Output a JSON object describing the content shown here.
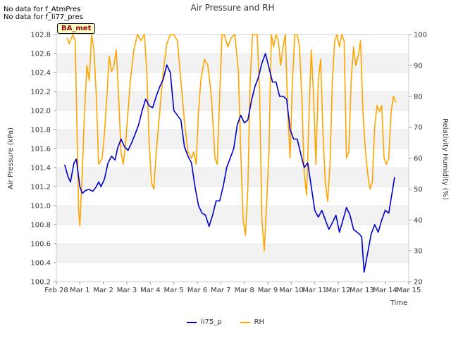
{
  "notes": [
    "No data for f_AtmPres",
    "No data for f_li77_pres"
  ],
  "badge": "BA_met",
  "chart_data": {
    "type": "line",
    "title": "Air Pressure and RH",
    "xlabel": "Time",
    "ylabel_left": "Air Pressure (kPa)",
    "ylabel_right": "Relativity Humidity (%)",
    "x_ticks": [
      "Feb 28",
      "Mar 1",
      "Mar 2",
      "Mar 3",
      "Mar 4",
      "Mar 5",
      "Mar 6",
      "Mar 7",
      "Mar 8",
      "Mar 9",
      "Mar 10",
      "Mar 11",
      "Mar 12",
      "Mar 13",
      "Mar 14",
      "Mar 15"
    ],
    "xlim_days": [
      0,
      15
    ],
    "ylim_left": [
      100.2,
      102.8
    ],
    "ylim_right": [
      20,
      100
    ],
    "y_ticks_left": [
      "100.2",
      "100.4",
      "100.6",
      "100.8",
      "101.0",
      "101.2",
      "101.4",
      "101.6",
      "101.8",
      "102.0",
      "102.2",
      "102.4",
      "102.6",
      "102.8"
    ],
    "y_ticks_right": [
      "20",
      "30",
      "40",
      "50",
      "60",
      "70",
      "80",
      "90",
      "100"
    ],
    "grid": "horizontal bands",
    "legend": "bottom-center",
    "series": [
      {
        "name": "li75_p",
        "axis": "left",
        "color": "#0000cc",
        "x": [
          0.35,
          0.5,
          0.6,
          0.75,
          0.85,
          1.0,
          1.1,
          1.25,
          1.4,
          1.55,
          1.7,
          1.8,
          1.9,
          2.05,
          2.2,
          2.35,
          2.5,
          2.6,
          2.75,
          2.9,
          3.05,
          3.2,
          3.35,
          3.5,
          3.65,
          3.8,
          3.95,
          4.1,
          4.25,
          4.4,
          4.55,
          4.7,
          4.85,
          5.0,
          5.15,
          5.3,
          5.45,
          5.6,
          5.75,
          5.9,
          6.05,
          6.2,
          6.35,
          6.5,
          6.65,
          6.8,
          6.95,
          7.1,
          7.25,
          7.4,
          7.55,
          7.7,
          7.85,
          8.0,
          8.15,
          8.3,
          8.45,
          8.6,
          8.75,
          8.9,
          9.05,
          9.2,
          9.35,
          9.5,
          9.65,
          9.8,
          9.95,
          10.1,
          10.25,
          10.4,
          10.55,
          10.7,
          10.85,
          11.0,
          11.15,
          11.3,
          11.45,
          11.6,
          11.75,
          11.9,
          12.05,
          12.2,
          12.35,
          12.5,
          12.65,
          12.8,
          12.9,
          13.0,
          13.1,
          13.25,
          13.4,
          13.55,
          13.7,
          13.85,
          14.0,
          14.15,
          14.3,
          14.4
        ],
        "values": [
          101.43,
          101.3,
          101.25,
          101.45,
          101.49,
          101.2,
          101.13,
          101.16,
          101.17,
          101.15,
          101.2,
          101.25,
          101.2,
          101.28,
          101.45,
          101.52,
          101.48,
          101.6,
          101.7,
          101.62,
          101.58,
          101.66,
          101.75,
          101.85,
          102.0,
          102.12,
          102.05,
          102.03,
          102.15,
          102.25,
          102.33,
          102.48,
          102.4,
          102.0,
          101.95,
          101.9,
          101.62,
          101.52,
          101.45,
          101.2,
          101.0,
          100.92,
          100.9,
          100.78,
          100.9,
          101.05,
          101.05,
          101.2,
          101.4,
          101.5,
          101.6,
          101.85,
          101.95,
          101.87,
          101.9,
          102.1,
          102.25,
          102.35,
          102.5,
          102.6,
          102.45,
          102.3,
          102.3,
          102.15,
          102.15,
          102.12,
          101.8,
          101.7,
          101.7,
          101.55,
          101.4,
          101.45,
          101.2,
          100.95,
          100.88,
          100.95,
          100.85,
          100.75,
          100.82,
          100.9,
          100.72,
          100.85,
          100.98,
          100.9,
          100.75,
          100.72,
          100.7,
          100.67,
          100.3,
          100.5,
          100.7,
          100.8,
          100.72,
          100.85,
          100.95,
          100.92,
          101.15,
          101.3
        ]
      },
      {
        "name": "RH",
        "axis": "right",
        "color": "#ffa500",
        "x": [
          0.45,
          0.55,
          0.7,
          0.8,
          0.95,
          1.0,
          1.1,
          1.2,
          1.3,
          1.4,
          1.5,
          1.6,
          1.7,
          1.8,
          1.95,
          2.05,
          2.15,
          2.25,
          2.35,
          2.45,
          2.55,
          2.65,
          2.75,
          2.85,
          2.95,
          3.05,
          3.15,
          3.3,
          3.45,
          3.6,
          3.75,
          3.85,
          3.95,
          4.05,
          4.15,
          4.25,
          4.4,
          4.55,
          4.7,
          4.85,
          5.0,
          5.15,
          5.3,
          5.45,
          5.6,
          5.75,
          5.85,
          5.95,
          6.05,
          6.15,
          6.3,
          6.45,
          6.6,
          6.75,
          6.85,
          6.95,
          7.05,
          7.15,
          7.3,
          7.45,
          7.6,
          7.75,
          7.85,
          7.95,
          8.05,
          8.15,
          8.25,
          8.35,
          8.45,
          8.55,
          8.65,
          8.75,
          8.85,
          8.95,
          9.05,
          9.15,
          9.25,
          9.35,
          9.45,
          9.55,
          9.65,
          9.75,
          9.85,
          9.95,
          10.05,
          10.15,
          10.25,
          10.35,
          10.45,
          10.55,
          10.65,
          10.75,
          10.85,
          10.95,
          11.05,
          11.15,
          11.25,
          11.35,
          11.45,
          11.55,
          11.65,
          11.75,
          11.85,
          11.95,
          12.05,
          12.15,
          12.25,
          12.35,
          12.45,
          12.55,
          12.65,
          12.75,
          12.85,
          12.95,
          13.05,
          13.15,
          13.25,
          13.35,
          13.45,
          13.55,
          13.65,
          13.75,
          13.85,
          13.95,
          14.05,
          14.15,
          14.25,
          14.35,
          14.45
        ],
        "values": [
          99,
          97,
          100,
          98,
          43,
          38,
          55,
          75,
          90,
          85,
          100,
          95,
          80,
          58,
          60,
          68,
          80,
          93,
          88,
          90,
          95,
          80,
          62,
          58,
          65,
          75,
          85,
          95,
          100,
          98,
          100,
          88,
          65,
          52,
          50,
          62,
          75,
          88,
          97,
          100,
          100,
          98,
          85,
          72,
          62,
          60,
          62,
          58,
          75,
          85,
          92,
          90,
          80,
          60,
          58,
          80,
          100,
          100,
          96,
          99,
          100,
          88,
          62,
          40,
          35,
          50,
          85,
          100,
          100,
          100,
          82,
          40,
          30,
          45,
          62,
          100,
          96,
          100,
          98,
          90,
          96,
          100,
          75,
          60,
          85,
          100,
          100,
          96,
          80,
          55,
          48,
          72,
          95,
          80,
          58,
          85,
          92,
          68,
          52,
          46,
          58,
          85,
          98,
          100,
          96,
          100,
          98,
          60,
          62,
          85,
          96,
          90,
          93,
          98,
          75,
          63,
          55,
          50,
          52,
          70,
          77,
          75,
          77,
          60,
          58,
          60,
          75,
          80,
          78
        ]
      }
    ]
  }
}
